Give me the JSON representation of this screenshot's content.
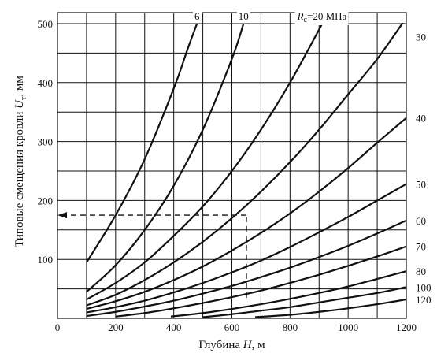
{
  "chart_data": {
    "type": "line",
    "xlabel_parts": [
      "Глубина ",
      "H",
      ", м"
    ],
    "ylabel_parts": [
      "Типовые смещения кровли ",
      "U",
      "т",
      ", мм"
    ],
    "xlim": [
      0,
      1200
    ],
    "ylim": [
      0,
      500
    ],
    "x_ticks": [
      "0",
      "200",
      "400",
      "600",
      "800",
      "1000",
      "1200"
    ],
    "y_ticks": [
      "100",
      "200",
      "300",
      "400",
      "500"
    ],
    "grid": true,
    "series": [
      {
        "name": "6",
        "label_parts": [
          "6"
        ],
        "points": [
          [
            100,
            95
          ],
          [
            200,
            175
          ],
          [
            300,
            270
          ],
          [
            400,
            390
          ],
          [
            450,
            460
          ],
          [
            480,
            500
          ]
        ]
      },
      {
        "name": "10",
        "label_parts": [
          "10"
        ],
        "points": [
          [
            100,
            45
          ],
          [
            200,
            90
          ],
          [
            300,
            150
          ],
          [
            400,
            225
          ],
          [
            500,
            320
          ],
          [
            600,
            440
          ],
          [
            640,
            500
          ]
        ]
      },
      {
        "name": "20",
        "label_parts": [
          "R",
          "c",
          "=20 МПа"
        ],
        "points": [
          [
            100,
            32
          ],
          [
            200,
            60
          ],
          [
            300,
            95
          ],
          [
            400,
            140
          ],
          [
            500,
            190
          ],
          [
            600,
            250
          ],
          [
            700,
            320
          ],
          [
            800,
            400
          ],
          [
            900,
            490
          ],
          [
            910,
            500
          ]
        ]
      },
      {
        "name": "30",
        "label_parts": [
          "30"
        ],
        "points": [
          [
            100,
            22
          ],
          [
            200,
            40
          ],
          [
            300,
            65
          ],
          [
            400,
            95
          ],
          [
            500,
            130
          ],
          [
            600,
            170
          ],
          [
            700,
            215
          ],
          [
            800,
            265
          ],
          [
            900,
            320
          ],
          [
            1000,
            380
          ],
          [
            1100,
            440
          ],
          [
            1200,
            510
          ]
        ]
      },
      {
        "name": "40",
        "label_parts": [
          "40"
        ],
        "points": [
          [
            100,
            16
          ],
          [
            200,
            29
          ],
          [
            300,
            45
          ],
          [
            400,
            65
          ],
          [
            500,
            88
          ],
          [
            600,
            115
          ],
          [
            700,
            145
          ],
          [
            800,
            178
          ],
          [
            900,
            215
          ],
          [
            1000,
            255
          ],
          [
            1100,
            298
          ],
          [
            1200,
            340
          ]
        ]
      },
      {
        "name": "50",
        "label_parts": [
          "50"
        ],
        "points": [
          [
            100,
            10
          ],
          [
            200,
            19
          ],
          [
            300,
            30
          ],
          [
            400,
            44
          ],
          [
            500,
            60
          ],
          [
            600,
            78
          ],
          [
            700,
            98
          ],
          [
            800,
            121
          ],
          [
            900,
            146
          ],
          [
            1000,
            172
          ],
          [
            1100,
            200
          ],
          [
            1200,
            228
          ]
        ]
      },
      {
        "name": "60",
        "label_parts": [
          "60"
        ],
        "points": [
          [
            100,
            4
          ],
          [
            200,
            11
          ],
          [
            300,
            20
          ],
          [
            400,
            30
          ],
          [
            500,
            42
          ],
          [
            600,
            55
          ],
          [
            700,
            70
          ],
          [
            800,
            86
          ],
          [
            900,
            104
          ],
          [
            1000,
            123
          ],
          [
            1100,
            144
          ],
          [
            1200,
            166
          ]
        ]
      },
      {
        "name": "70",
        "label_parts": [
          "70"
        ],
        "points": [
          [
            200,
            3
          ],
          [
            300,
            9
          ],
          [
            400,
            17
          ],
          [
            500,
            26
          ],
          [
            600,
            36
          ],
          [
            700,
            47
          ],
          [
            800,
            60
          ],
          [
            900,
            74
          ],
          [
            1000,
            89
          ],
          [
            1100,
            105
          ],
          [
            1200,
            122
          ]
        ]
      },
      {
        "name": "80",
        "label_parts": [
          "80"
        ],
        "points": [
          [
            390,
            3
          ],
          [
            500,
            9
          ],
          [
            600,
            16
          ],
          [
            700,
            24
          ],
          [
            800,
            33
          ],
          [
            900,
            43
          ],
          [
            1000,
            54
          ],
          [
            1100,
            67
          ],
          [
            1200,
            80
          ]
        ]
      },
      {
        "name": "100",
        "label_parts": [
          "100"
        ],
        "points": [
          [
            500,
            2
          ],
          [
            600,
            7
          ],
          [
            700,
            13
          ],
          [
            800,
            19
          ],
          [
            900,
            27
          ],
          [
            1000,
            35
          ],
          [
            1100,
            43
          ],
          [
            1200,
            53
          ]
        ]
      },
      {
        "name": "120",
        "label_parts": [
          "120"
        ],
        "points": [
          [
            680,
            2
          ],
          [
            800,
            6
          ],
          [
            900,
            11
          ],
          [
            1000,
            17
          ],
          [
            1100,
            24
          ],
          [
            1200,
            32
          ]
        ]
      }
    ],
    "guide_lines": [
      {
        "from": [
          650,
          35
        ],
        "to": [
          650,
          175
        ]
      },
      {
        "from": [
          650,
          175
        ],
        "to": [
          0,
          175
        ],
        "arrow": true
      }
    ]
  }
}
